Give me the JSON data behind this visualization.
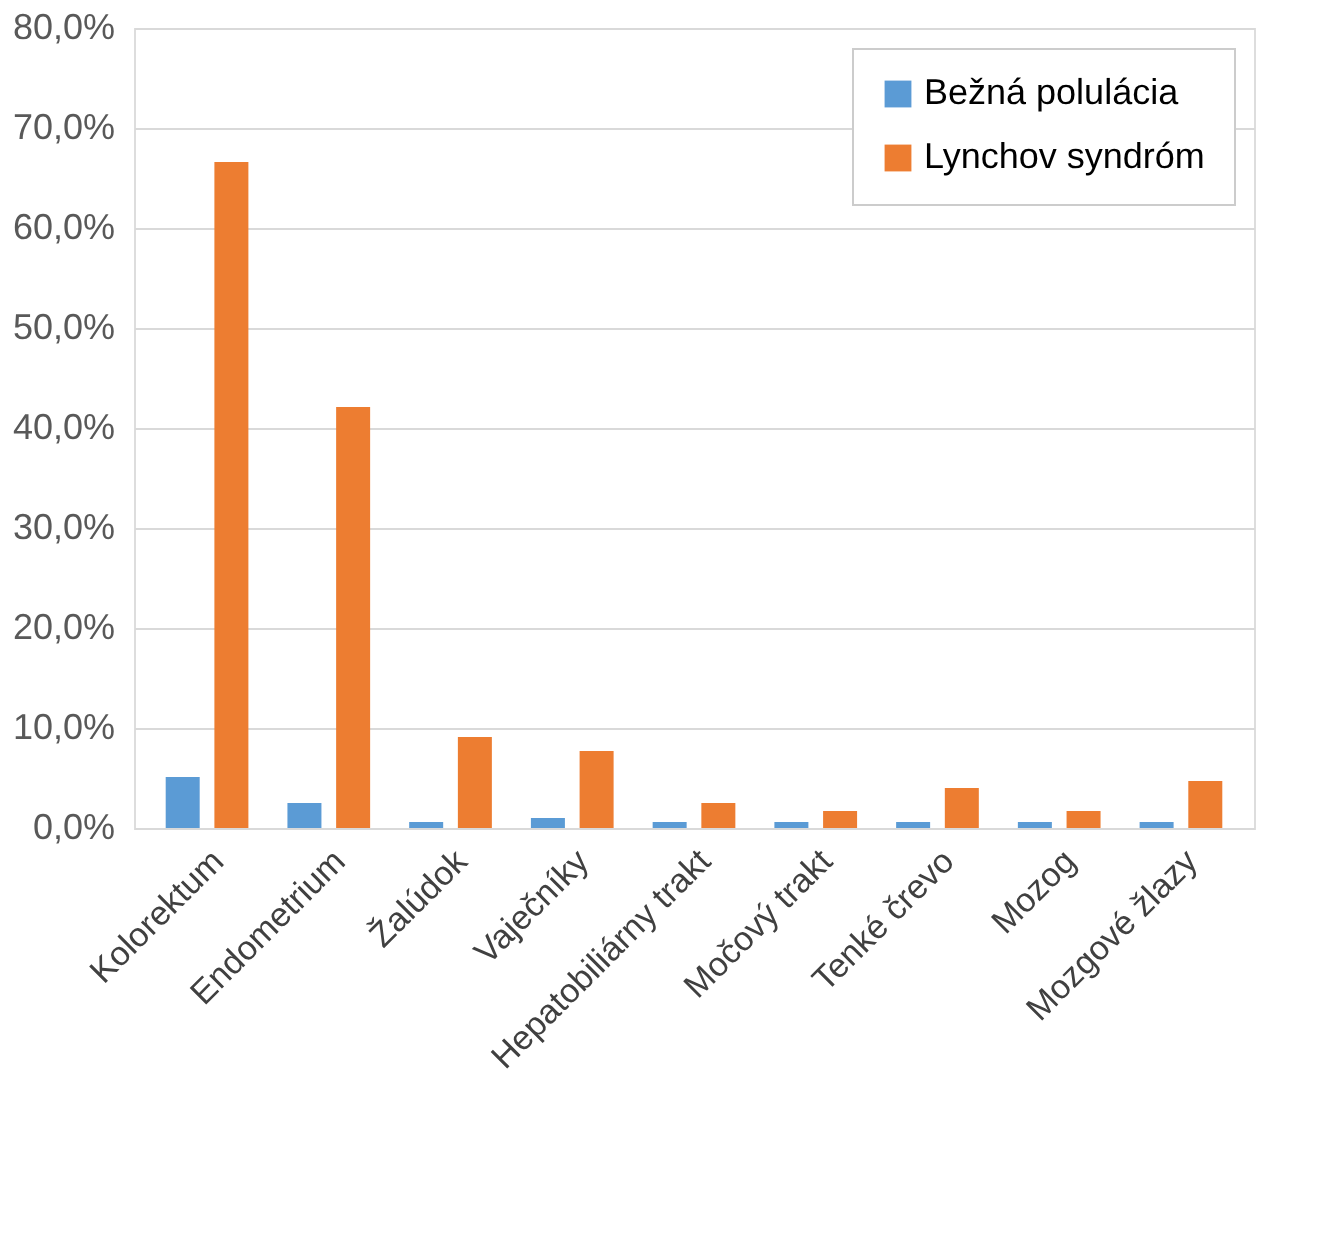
{
  "chart_data": {
    "type": "bar",
    "categories": [
      "Kolorektum",
      "Endometrium",
      "Žalúdok",
      "Vaječníky",
      "Hepatobiliárny trakt",
      "Močový trakt",
      "Tenké črevo",
      "Mozog",
      "Mozgové žlazy"
    ],
    "series": [
      {
        "name": "Bežná polulácia",
        "color": "#5b9bd5",
        "values": [
          5.1,
          2.5,
          0.6,
          1.0,
          0.6,
          0.6,
          0.6,
          0.6,
          0.6
        ]
      },
      {
        "name": "Lynchov syndróm",
        "color": "#ed7d31",
        "values": [
          66.6,
          42.1,
          9.1,
          7.7,
          2.5,
          1.7,
          4.0,
          1.7,
          4.7
        ]
      }
    ],
    "ylim": [
      0,
      80
    ],
    "yticks": [
      {
        "value": 0,
        "label": "0,0%"
      },
      {
        "value": 10,
        "label": "10,0%"
      },
      {
        "value": 20,
        "label": "20,0%"
      },
      {
        "value": 30,
        "label": "30,0%"
      },
      {
        "value": 40,
        "label": "40,0%"
      },
      {
        "value": 50,
        "label": "50,0%"
      },
      {
        "value": 60,
        "label": "60,0%"
      },
      {
        "value": 70,
        "label": "70,0%"
      },
      {
        "value": 80,
        "label": "80,0%"
      }
    ],
    "grid": "y",
    "legend": "top right"
  }
}
